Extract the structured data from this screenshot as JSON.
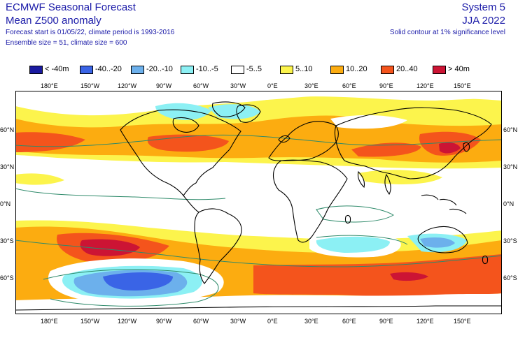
{
  "header": {
    "title": "ECMWF Seasonal Forecast",
    "subtitle": "Mean Z500 anomaly",
    "forecast_start": "Forecast start is 01/05/22, climate period is 1993-2016",
    "ensemble": "Ensemble size = 51, climate size = 600",
    "system": "System 5",
    "period": "JJA 2022",
    "significance_note": "Solid contour at 1% significance level"
  },
  "legend": [
    {
      "label": "< -40m",
      "color": "#1a1aa0"
    },
    {
      "label": "-40..-20",
      "color": "#3a64e6"
    },
    {
      "label": "-20..-10",
      "color": "#6cb0ec"
    },
    {
      "label": "-10..-5",
      "color": "#8cf0f4"
    },
    {
      "label": "-5..5",
      "color": "#ffffff"
    },
    {
      "label": "5..10",
      "color": "#fcf44c"
    },
    {
      "label": "10..20",
      "color": "#fcac10"
    },
    {
      "label": "20..40",
      "color": "#f4541c"
    },
    {
      "label": "> 40m",
      "color": "#cc1434"
    }
  ],
  "axes": {
    "lon_labels": [
      "180°E",
      "150°W",
      "120°W",
      "90°W",
      "60°W",
      "30°W",
      "0°E",
      "30°E",
      "60°E",
      "90°E",
      "120°E",
      "150°E"
    ],
    "lat_labels_left": [
      "60°N",
      "30°N",
      "0°N",
      "30°S",
      "60°S"
    ],
    "lat_labels_right": [
      "60°N",
      "30°N",
      "0°N",
      "30°S",
      "60°S"
    ]
  }
}
